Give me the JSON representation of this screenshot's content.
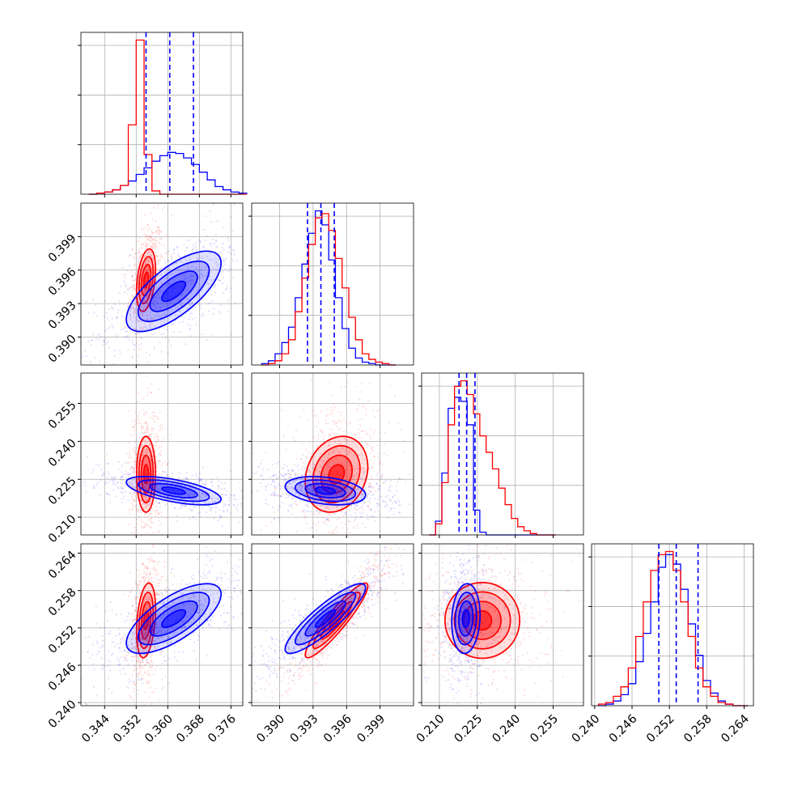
{
  "chart_data": {
    "type": "corner",
    "grid": true,
    "series": [
      {
        "name": "",
        "color": "#0000ff"
      },
      {
        "name": "",
        "color": "#ff0000"
      }
    ],
    "params": [
      {
        "range": [
          0.338,
          0.379
        ],
        "ticks": [
          0.344,
          0.352,
          0.36,
          0.368,
          0.376
        ],
        "tick_labels": [
          "0.344",
          "0.352",
          "0.360",
          "0.368",
          "0.376"
        ],
        "quantile_lines": [
          0.3545,
          0.3605,
          0.3665
        ],
        "hist": {
          "red": {
            "bin_start": 0.34,
            "bin_width": 0.002,
            "values": [
              0,
              1,
              2,
              4,
              8,
              63,
              140,
              36,
              3,
              0,
              0,
              0,
              0,
              0,
              0,
              0,
              0,
              0,
              0,
              0
            ]
          },
          "blue": {
            "bin_start": 0.34,
            "bin_width": 0.002,
            "values": [
              0,
              1,
              2,
              4,
              8,
              12,
              18,
              24,
              30,
              35,
              38,
              37,
              33,
              27,
              20,
              13,
              7,
              4,
              2,
              1
            ]
          }
        }
      },
      {
        "range": [
          0.3875,
          0.402
        ],
        "ticks": [
          0.39,
          0.393,
          0.396,
          0.399
        ],
        "tick_labels": [
          "0.390",
          "0.393",
          "0.396",
          "0.399"
        ],
        "quantile_lines": [
          0.3925,
          0.3937,
          0.3949
        ],
        "hist": {
          "red": {
            "bin_start": 0.3884,
            "bin_width": 0.0006,
            "values": [
              0,
              1,
              3,
              8,
              18,
              38,
              62,
              86,
              105,
              108,
              96,
              76,
              55,
              34,
              18,
              8,
              4,
              2,
              1,
              0
            ]
          },
          "blue": {
            "bin_start": 0.3884,
            "bin_width": 0.0006,
            "values": [
              1,
              3,
              8,
              16,
              27,
              48,
              72,
              94,
              110,
              100,
              75,
              48,
              26,
              12,
              5,
              2,
              1,
              0,
              0,
              0
            ]
          }
        }
      },
      {
        "range": [
          0.203,
          0.267
        ],
        "ticks": [
          0.21,
          0.225,
          0.24,
          0.255
        ],
        "tick_labels": [
          "0.210",
          "0.225",
          "0.240",
          "0.255"
        ],
        "quantile_lines": [
          0.2178,
          0.2208,
          0.2241
        ],
        "hist": {
          "red": {
            "bin_start": 0.206,
            "bin_width": 0.0025,
            "values": [
              0,
              8,
              38,
              80,
              108,
              112,
              102,
              88,
              72,
              60,
              48,
              34,
              22,
              12,
              6,
              3,
              1,
              0,
              0,
              0
            ]
          },
          "blue": {
            "bin_start": 0.206,
            "bin_width": 0.0025,
            "values": [
              0,
              10,
              45,
              92,
              100,
              97,
              80,
              18,
              2,
              0,
              0,
              0,
              0,
              0,
              0,
              0,
              0,
              0,
              0,
              0
            ]
          }
        }
      },
      {
        "range": [
          0.2395,
          0.2655
        ],
        "ticks": [
          0.24,
          0.246,
          0.252,
          0.258,
          0.264
        ],
        "tick_labels": [
          "0.240",
          "0.246",
          "0.252",
          "0.258",
          "0.264"
        ],
        "quantile_lines": [
          0.2503,
          0.2531,
          0.2566
        ],
        "hist": {
          "red": {
            "bin_start": 0.2406,
            "bin_width": 0.0012,
            "values": [
              1,
              2,
              6,
              12,
              24,
              44,
              66,
              86,
              96,
              98,
              86,
              66,
              44,
              24,
              12,
              6,
              2,
              1,
              0,
              0
            ]
          },
          "blue": {
            "bin_start": 0.2406,
            "bin_width": 0.0012,
            "values": [
              0,
              1,
              3,
              7,
              14,
              28,
              46,
              66,
              88,
              96,
              90,
              74,
              52,
              32,
              16,
              8,
              3,
              1,
              0,
              0
            ]
          }
        }
      }
    ],
    "joint": [
      {
        "i": 1,
        "j": 0,
        "clouds": [
          {
            "color": "#ff0000",
            "mean": [
              0.3545,
              0.3951
            ],
            "sd": [
              0.0012,
              0.0014
            ],
            "rho": 0.35
          },
          {
            "color": "#0000ff",
            "mean": [
              0.3615,
              0.3941
            ],
            "sd": [
              0.006,
              0.0018
            ],
            "rho": 0.7
          }
        ]
      },
      {
        "i": 2,
        "j": 0,
        "clouds": [
          {
            "color": "#ff0000",
            "mean": [
              0.3545,
              0.227
            ],
            "sd": [
              0.0012,
              0.0075
            ],
            "rho": 0.0
          },
          {
            "color": "#0000ff",
            "mean": [
              0.3615,
              0.2205
            ],
            "sd": [
              0.006,
              0.0028
            ],
            "rho": -0.6
          }
        ]
      },
      {
        "i": 2,
        "j": 1,
        "clouds": [
          {
            "color": "#ff0000",
            "mean": [
              0.3951,
              0.227
            ],
            "sd": [
              0.0014,
              0.0075
            ],
            "rho": 0.2
          },
          {
            "color": "#0000ff",
            "mean": [
              0.3941,
              0.2205
            ],
            "sd": [
              0.0018,
              0.0028
            ],
            "rho": -0.3
          }
        ]
      },
      {
        "i": 3,
        "j": 0,
        "clouds": [
          {
            "color": "#ff0000",
            "mean": [
              0.3545,
              0.2532
            ],
            "sd": [
              0.0012,
              0.003
            ],
            "rho": 0.3
          },
          {
            "color": "#0000ff",
            "mean": [
              0.3615,
              0.2535
            ],
            "sd": [
              0.006,
              0.0028
            ],
            "rho": 0.7
          }
        ]
      },
      {
        "i": 3,
        "j": 1,
        "clouds": [
          {
            "color": "#ff0000",
            "mean": [
              0.3951,
              0.2532
            ],
            "sd": [
              0.0014,
              0.003
            ],
            "rho": 0.92
          },
          {
            "color": "#0000ff",
            "mean": [
              0.3941,
              0.2535
            ],
            "sd": [
              0.0018,
              0.0028
            ],
            "rho": 0.88
          }
        ]
      },
      {
        "i": 3,
        "j": 2,
        "clouds": [
          {
            "color": "#ff0000",
            "mean": [
              0.227,
              0.2532
            ],
            "sd": [
              0.0075,
              0.003
            ],
            "rho": 0.0
          },
          {
            "color": "#0000ff",
            "mean": [
              0.2205,
              0.2535
            ],
            "sd": [
              0.0028,
              0.0028
            ],
            "rho": 0.1
          }
        ]
      }
    ]
  }
}
